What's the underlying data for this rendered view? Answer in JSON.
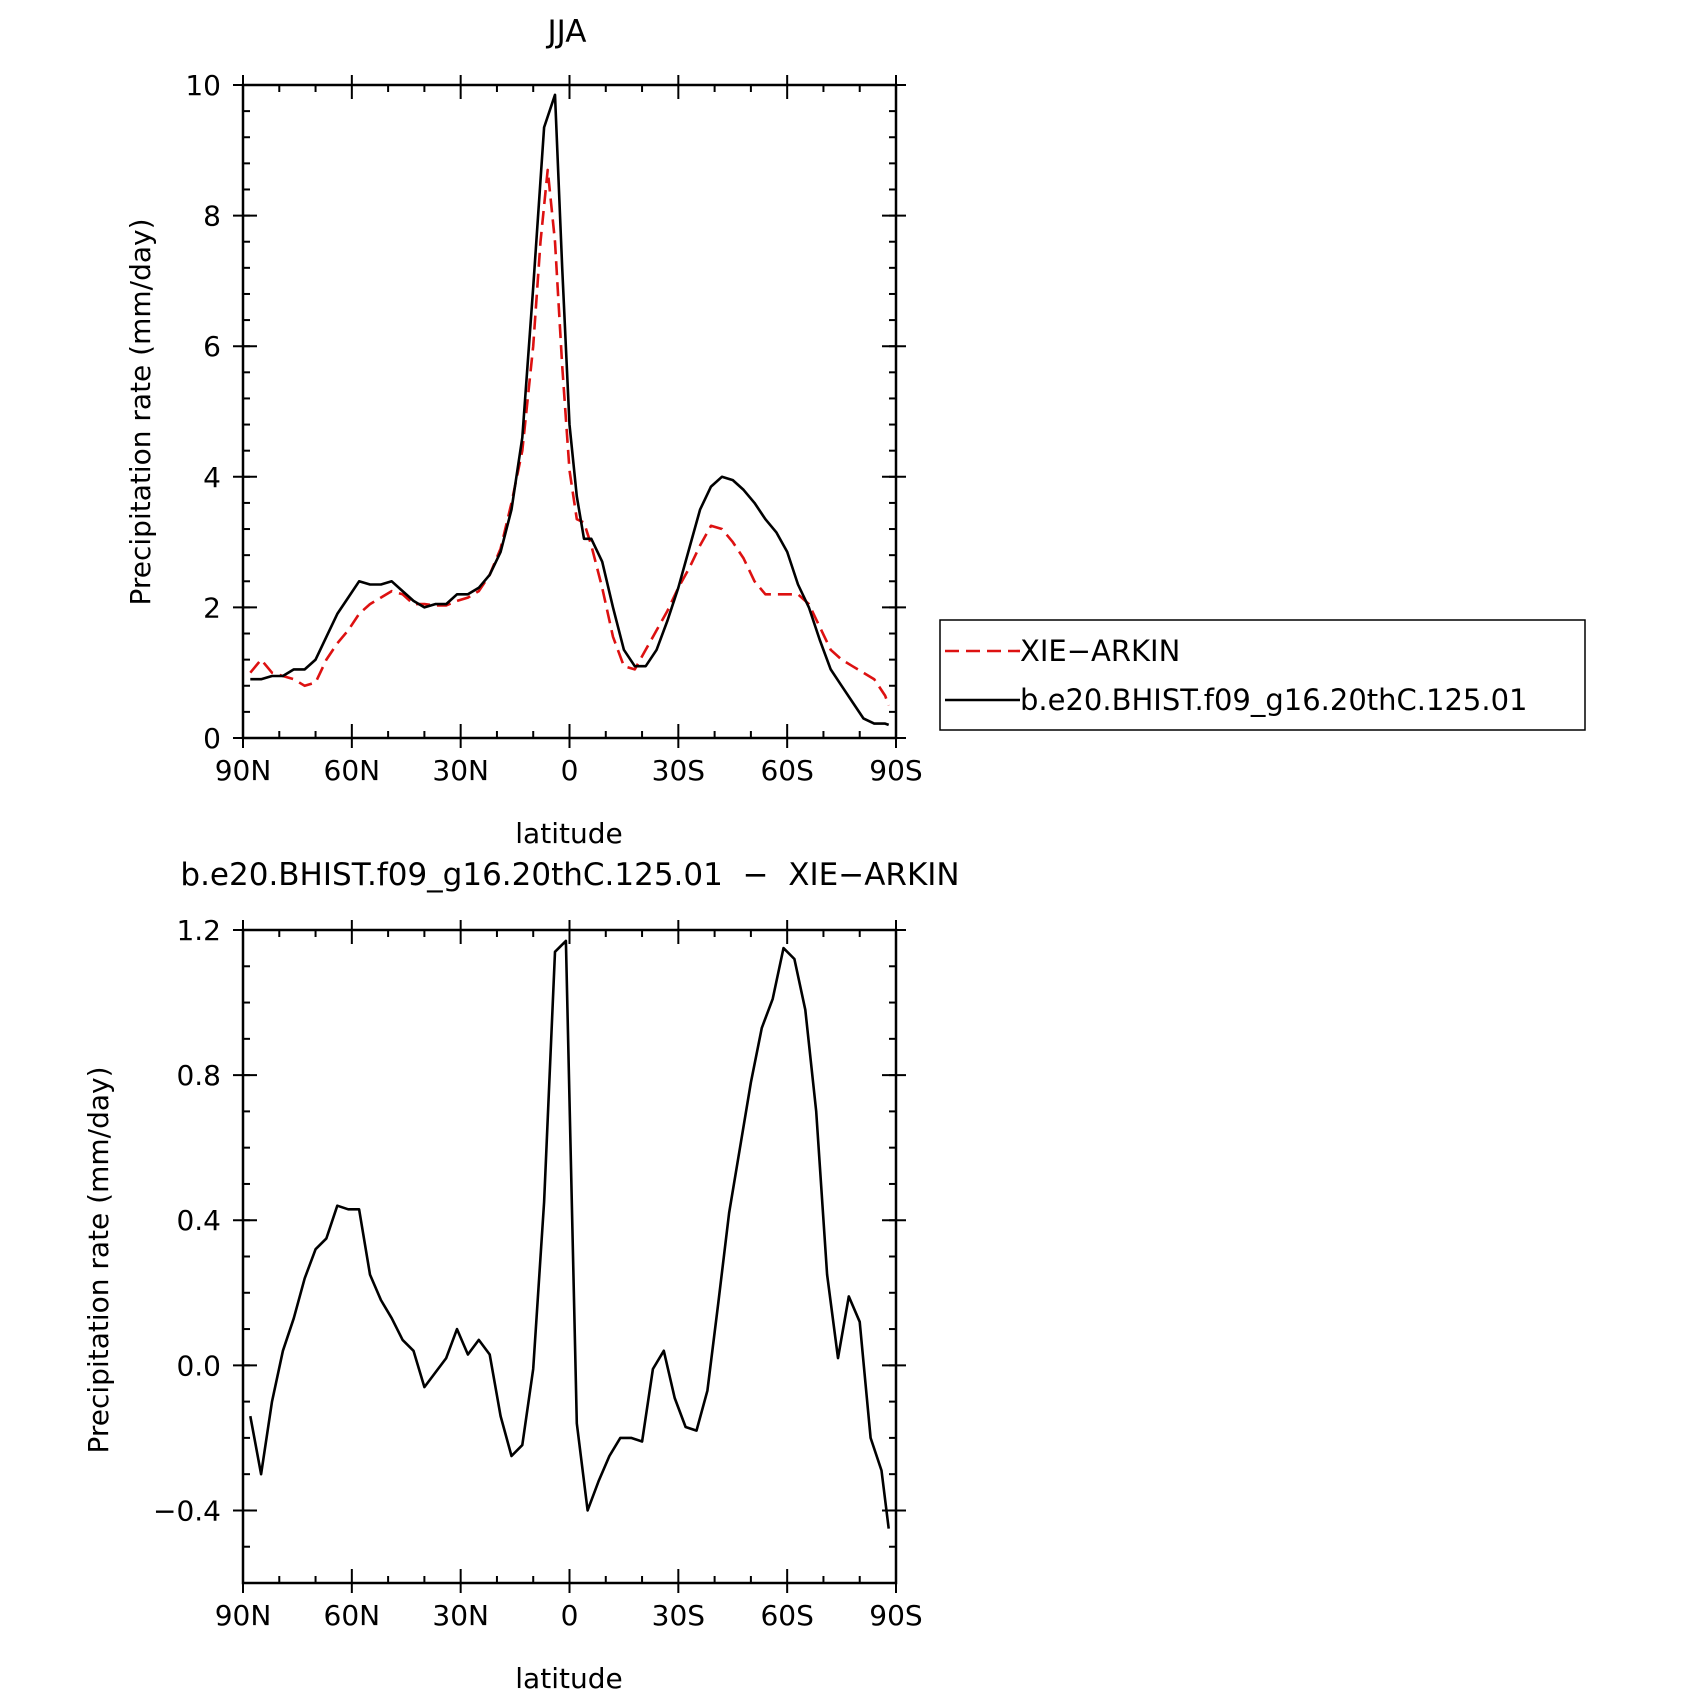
{
  "chart_data": [
    {
      "type": "line",
      "title": "JJA",
      "xlabel": "latitude",
      "ylabel": "Precipitation rate (mm/day)",
      "xlim": [
        90,
        -90
      ],
      "ylim": [
        0,
        10
      ],
      "xticks": [
        {
          "value": 90,
          "label": "90N"
        },
        {
          "value": 60,
          "label": "60N"
        },
        {
          "value": 30,
          "label": "30N"
        },
        {
          "value": 0,
          "label": "0"
        },
        {
          "value": -30,
          "label": "30S"
        },
        {
          "value": -60,
          "label": "60S"
        },
        {
          "value": -90,
          "label": "90S"
        }
      ],
      "yticks": [
        {
          "value": 0,
          "label": "0"
        },
        {
          "value": 2,
          "label": "2"
        },
        {
          "value": 4,
          "label": "4"
        },
        {
          "value": 6,
          "label": "6"
        },
        {
          "value": 8,
          "label": "8"
        },
        {
          "value": 10,
          "label": "10"
        }
      ],
      "grid": false,
      "legend_position": "right",
      "series": [
        {
          "name": "XIE−ARKIN",
          "color": "#dd1111",
          "dash": "dashed",
          "x": [
            88,
            85,
            82,
            79,
            76,
            73,
            70,
            67,
            64,
            61,
            58,
            55,
            52,
            49,
            46,
            43,
            40,
            37,
            34,
            31,
            28,
            25,
            22,
            19,
            16,
            13,
            10,
            8,
            6,
            4,
            2,
            0,
            -2,
            -4,
            -6,
            -9,
            -12,
            -15,
            -18,
            -21,
            -24,
            -27,
            -30,
            -33,
            -36,
            -39,
            -42,
            -45,
            -48,
            -51,
            -54,
            -57,
            -60,
            -63,
            -66,
            -69,
            -72,
            -75,
            -78,
            -81,
            -84,
            -87,
            -88
          ],
          "values": [
            1.0,
            1.2,
            1.0,
            0.95,
            0.9,
            0.8,
            0.85,
            1.2,
            1.45,
            1.65,
            1.9,
            2.05,
            2.15,
            2.25,
            2.2,
            2.05,
            2.05,
            2.03,
            2.03,
            2.1,
            2.15,
            2.25,
            2.5,
            2.9,
            3.6,
            4.4,
            6.0,
            7.6,
            8.7,
            7.6,
            5.7,
            4.1,
            3.35,
            3.3,
            2.95,
            2.3,
            1.55,
            1.1,
            1.05,
            1.35,
            1.65,
            1.95,
            2.3,
            2.6,
            2.95,
            3.25,
            3.2,
            3.0,
            2.75,
            2.4,
            2.2,
            2.2,
            2.2,
            2.2,
            2.05,
            1.7,
            1.35,
            1.2,
            1.1,
            1.0,
            0.9,
            0.65,
            0.5
          ]
        },
        {
          "name": "b.e20.BHIST.f09_g16.20thC.125.01",
          "color": "#000000",
          "dash": "solid",
          "x": [
            88,
            85,
            82,
            79,
            76,
            73,
            70,
            67,
            64,
            61,
            58,
            55,
            52,
            49,
            46,
            43,
            40,
            37,
            34,
            31,
            28,
            25,
            22,
            19,
            16,
            13,
            10,
            7,
            4,
            2,
            0,
            -2,
            -4,
            -6,
            -9,
            -12,
            -15,
            -18,
            -21,
            -24,
            -27,
            -30,
            -33,
            -36,
            -39,
            -42,
            -45,
            -48,
            -51,
            -54,
            -57,
            -60,
            -63,
            -66,
            -69,
            -72,
            -75,
            -78,
            -81,
            -84,
            -87,
            -88
          ],
          "values": [
            0.9,
            0.9,
            0.95,
            0.95,
            1.05,
            1.05,
            1.2,
            1.55,
            1.9,
            2.15,
            2.4,
            2.35,
            2.35,
            2.4,
            2.25,
            2.1,
            2.0,
            2.05,
            2.05,
            2.2,
            2.2,
            2.3,
            2.5,
            2.85,
            3.5,
            4.6,
            6.9,
            9.35,
            9.85,
            7.2,
            4.8,
            3.7,
            3.05,
            3.05,
            2.7,
            2.0,
            1.35,
            1.1,
            1.1,
            1.35,
            1.8,
            2.3,
            2.9,
            3.5,
            3.85,
            4.0,
            3.95,
            3.8,
            3.6,
            3.35,
            3.15,
            2.85,
            2.35,
            2.0,
            1.5,
            1.05,
            0.8,
            0.55,
            0.3,
            0.22,
            0.22,
            0.2
          ]
        }
      ]
    },
    {
      "type": "line",
      "title": "b.e20.BHIST.f09_g16.20thC.125.01  −  XIE−ARKIN",
      "xlabel": "latitude",
      "ylabel": "Precipitation rate (mm/day)",
      "xlim": [
        90,
        -90
      ],
      "ylim": [
        -0.6,
        1.2
      ],
      "xticks": [
        {
          "value": 90,
          "label": "90N"
        },
        {
          "value": 60,
          "label": "60N"
        },
        {
          "value": 30,
          "label": "30N"
        },
        {
          "value": 0,
          "label": "0"
        },
        {
          "value": -30,
          "label": "30S"
        },
        {
          "value": -60,
          "label": "60S"
        },
        {
          "value": -90,
          "label": "90S"
        }
      ],
      "yticks": [
        {
          "value": -0.4,
          "label": "−0.4"
        },
        {
          "value": 0.0,
          "label": "0.0"
        },
        {
          "value": 0.4,
          "label": "0.4"
        },
        {
          "value": 0.8,
          "label": "0.8"
        },
        {
          "value": 1.2,
          "label": "1.2"
        }
      ],
      "grid": false,
      "series": [
        {
          "color": "#000000",
          "dash": "solid",
          "x": [
            88,
            85,
            82,
            79,
            76,
            73,
            70,
            67,
            64,
            61,
            58,
            55,
            52,
            49,
            46,
            43,
            40,
            37,
            34,
            31,
            28,
            25,
            22,
            19,
            16,
            13,
            10,
            7,
            4,
            1,
            -2,
            -5,
            -8,
            -11,
            -14,
            -17,
            -20,
            -23,
            -26,
            -29,
            -32,
            -35,
            -38,
            -41,
            -44,
            -47,
            -50,
            -53,
            -56,
            -59,
            -62,
            -65,
            -68,
            -71,
            -74,
            -77,
            -80,
            -83,
            -86,
            -88
          ],
          "values": [
            -0.14,
            -0.3,
            -0.1,
            0.04,
            0.13,
            0.24,
            0.32,
            0.35,
            0.44,
            0.43,
            0.43,
            0.25,
            0.18,
            0.13,
            0.07,
            0.04,
            -0.06,
            -0.02,
            0.02,
            0.1,
            0.03,
            0.07,
            0.03,
            -0.14,
            -0.25,
            -0.22,
            -0.01,
            0.45,
            1.14,
            1.17,
            -0.16,
            -0.4,
            -0.32,
            -0.25,
            -0.2,
            -0.2,
            -0.21,
            -0.01,
            0.04,
            -0.09,
            -0.17,
            -0.18,
            -0.07,
            0.17,
            0.42,
            0.6,
            0.78,
            0.93,
            1.01,
            1.15,
            1.12,
            0.98,
            0.7,
            0.25,
            0.02,
            0.19,
            0.12,
            -0.2,
            -0.29,
            -0.45
          ]
        }
      ]
    }
  ]
}
